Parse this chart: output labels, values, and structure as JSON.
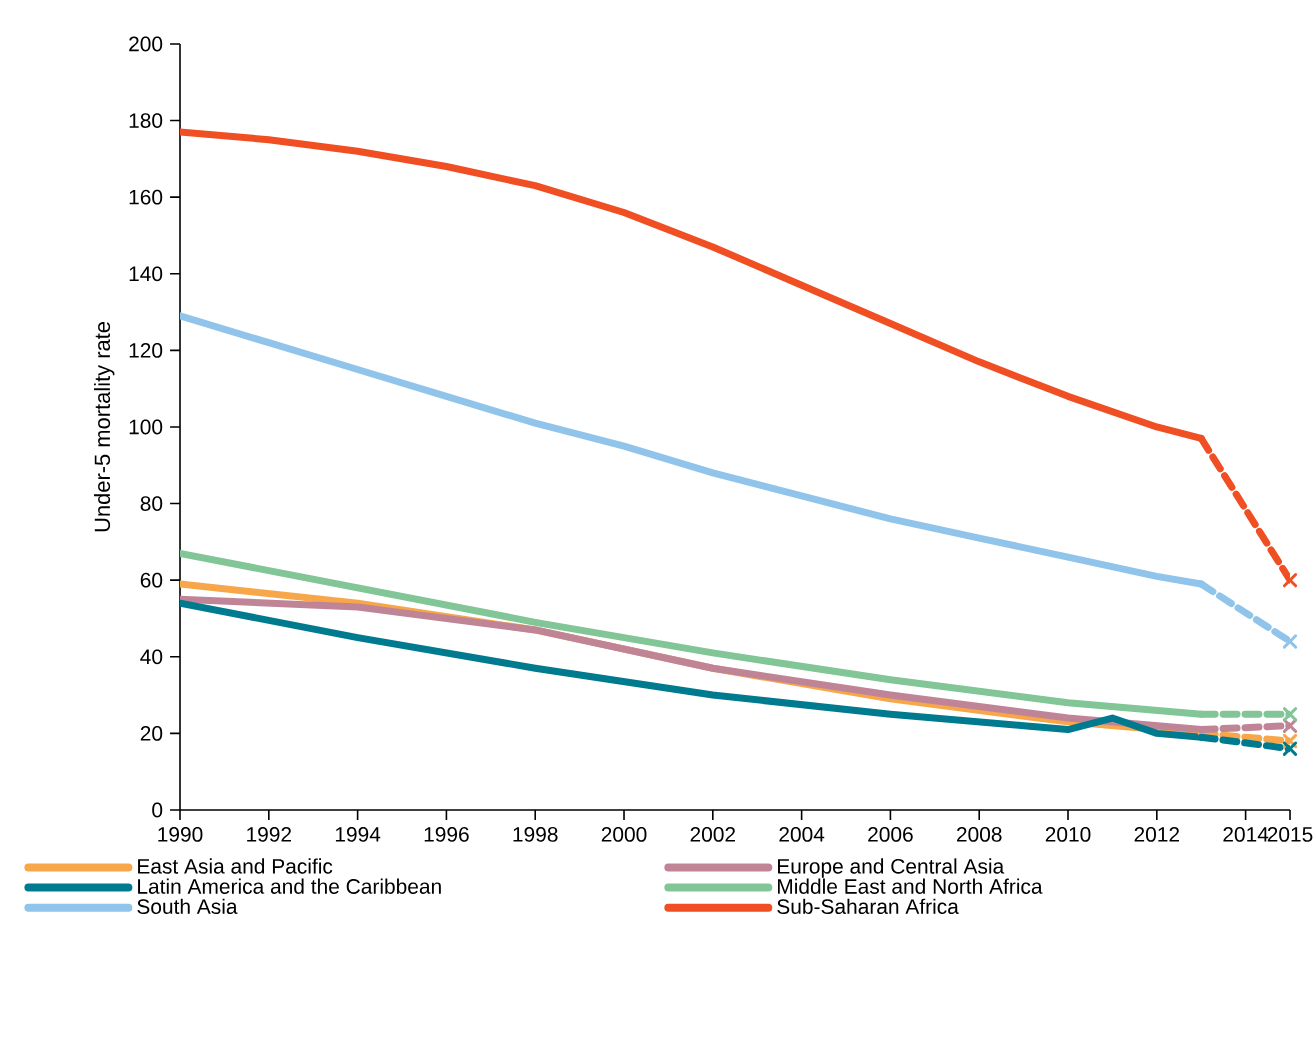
{
  "chart_data": {
    "type": "line",
    "ylabel": "Under-5 mortality rate",
    "xlim": [
      1990,
      2015
    ],
    "xticks": [
      1990,
      1992,
      1994,
      1996,
      1998,
      2000,
      2002,
      2004,
      2006,
      2008,
      2010,
      2012,
      2014,
      2015
    ],
    "ylim": [
      0,
      200
    ],
    "yticks": [
      0,
      20,
      40,
      60,
      80,
      100,
      120,
      140,
      160,
      180,
      200
    ],
    "grid": false,
    "legend": "bottom",
    "line_style": "solid",
    "marker": "none",
    "series": [
      {
        "name": "East Asia and Pacific",
        "color": "#f7a64a",
        "x": [
          1990,
          1994,
          1998,
          2002,
          2006,
          2010,
          2013
        ],
        "values": [
          59,
          54,
          47,
          37,
          29,
          23,
          20
        ]
      },
      {
        "name": "Europe and Central Asia",
        "color": "#c08497",
        "x": [
          1990,
          1994,
          1998,
          2002,
          2006,
          2010,
          2013
        ],
        "values": [
          55,
          53,
          47,
          37,
          30,
          24,
          21
        ]
      },
      {
        "name": "Latin America and the Caribbean",
        "color": "#007a8e",
        "x": [
          1990,
          1994,
          1998,
          2002,
          2006,
          2009,
          2010,
          2011,
          2012,
          2013
        ],
        "values": [
          54,
          45,
          37,
          30,
          25,
          22,
          21,
          24,
          20,
          19
        ]
      },
      {
        "name": "Middle East and North Africa",
        "color": "#82c596",
        "x": [
          1990,
          1994,
          1998,
          2002,
          2006,
          2010,
          2013
        ],
        "values": [
          67,
          58,
          49,
          41,
          34,
          28,
          25
        ]
      },
      {
        "name": "South Asia",
        "color": "#90c4ea",
        "x": [
          1990,
          1992,
          1994,
          1996,
          1998,
          2000,
          2002,
          2004,
          2006,
          2008,
          2010,
          2012,
          2013
        ],
        "values": [
          129,
          122,
          115,
          108,
          101,
          95,
          88,
          82,
          76,
          71,
          66,
          61,
          59
        ]
      },
      {
        "name": "Sub-Saharan Africa",
        "color": "#f04e23",
        "x": [
          1990,
          1992,
          1994,
          1996,
          1998,
          2000,
          2002,
          2004,
          2006,
          2008,
          2010,
          2012,
          2013
        ],
        "values": [
          177,
          175,
          172,
          168,
          163,
          156,
          147,
          137,
          127,
          117,
          108,
          100,
          97
        ]
      },
      {
        "color": "#f7a64a",
        "x": [
          2013,
          2015
        ],
        "values": [
          20,
          18
        ],
        "line_style": "dashed",
        "marker": "cross"
      },
      {
        "color": "#c08497",
        "x": [
          2013,
          2015
        ],
        "values": [
          21,
          22
        ],
        "line_style": "dashed",
        "marker": "cross"
      },
      {
        "color": "#007a8e",
        "x": [
          2013,
          2015
        ],
        "values": [
          19,
          16
        ],
        "line_style": "dashed",
        "marker": "cross"
      },
      {
        "color": "#82c596",
        "x": [
          2013,
          2015
        ],
        "values": [
          25,
          25
        ],
        "line_style": "dashed",
        "marker": "cross"
      },
      {
        "color": "#90c4ea",
        "x": [
          2013,
          2015
        ],
        "values": [
          59,
          44
        ],
        "line_style": "dashed",
        "marker": "cross"
      },
      {
        "color": "#f04e23",
        "x": [
          2013,
          2015
        ],
        "values": [
          97,
          60
        ],
        "line_style": "dashed",
        "marker": "cross"
      }
    ]
  }
}
